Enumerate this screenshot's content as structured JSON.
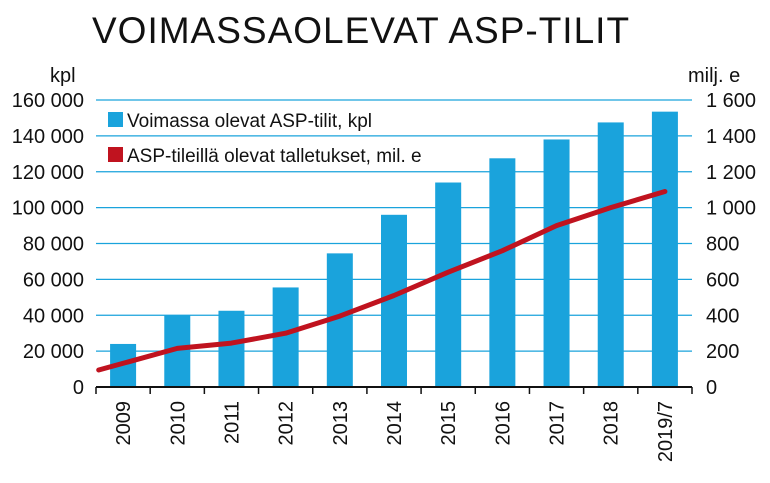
{
  "chart_data": {
    "type": "bar+line",
    "title": "VOIMASSAOLEVAT ASP-TILIT",
    "left_axis_label": "kpl",
    "right_axis_label": "milj. e",
    "categories": [
      "2009",
      "2010",
      "2011",
      "2012",
      "2013",
      "2014",
      "2015",
      "2016",
      "2017",
      "2018",
      "2019/7"
    ],
    "left_ticks": [
      "0",
      "20 000",
      "40 000",
      "60 000",
      "80 000",
      "100 000",
      "120 000",
      "140 000",
      "160 000"
    ],
    "right_ticks": [
      "0",
      "200",
      "400",
      "600",
      "800",
      "1 000",
      "1 200",
      "1 400",
      "1 600"
    ],
    "left_ylim": [
      0,
      160000
    ],
    "right_ylim": [
      0,
      1600
    ],
    "series": [
      {
        "name": "Voimassa olevat ASP-tilit, kpl",
        "type": "bar",
        "axis": "left",
        "color": "#1aa3dc",
        "values": [
          24000,
          40000,
          42500,
          55500,
          74500,
          96000,
          114000,
          127500,
          138000,
          147500,
          153500
        ]
      },
      {
        "name": "ASP-tileillä olevat talletukset, mil. e",
        "type": "line",
        "axis": "right",
        "color": "#c0131f",
        "values": [
          95,
          215,
          245,
          300,
          395,
          510,
          640,
          760,
          900,
          1000,
          1090
        ]
      }
    ],
    "grid": "horizontal",
    "legend_position": "top-left"
  }
}
